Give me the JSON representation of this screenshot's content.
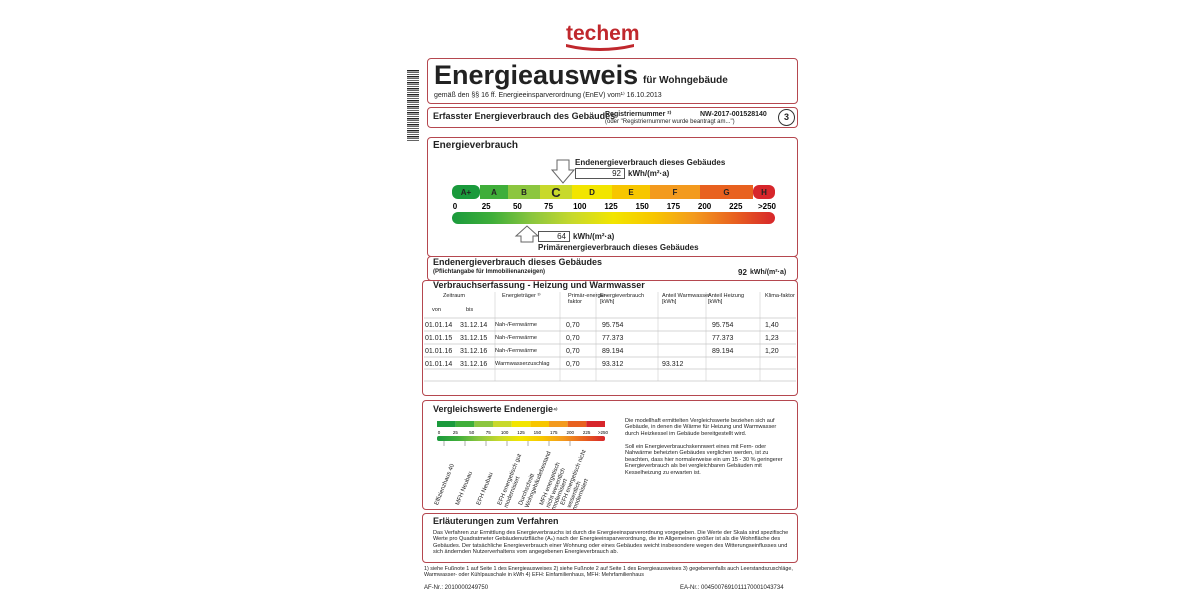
{
  "logo": "techem",
  "header": {
    "title": "Energieausweis",
    "subtitle": "für Wohngebäude",
    "regulation": "gemäß den §§ 16 ff. Energieeinsparverordnung (EnEV) vom¹⁾ 16.10.2013"
  },
  "section": {
    "title": "Erfasster Energieverbrauch des Gebäudes",
    "registration_label": "Registriernummer ²⁾",
    "registration_number": "NW-2017-001528140",
    "registration_note": "(oder \"Registriernummer wurde beantragt am...\")",
    "page": "3"
  },
  "energy": {
    "title": "Energieverbrauch",
    "final_label": "Endenergieverbrauch dieses Gebäudes",
    "final_value": "92",
    "unit": "kWh/(m²·a)",
    "classes": [
      "A+",
      "A",
      "B",
      "C",
      "D",
      "E",
      "F",
      "G",
      "H"
    ],
    "scale": [
      "0",
      "25",
      "50",
      "75",
      "100",
      "125",
      "150",
      "175",
      "200",
      "225",
      ">250"
    ],
    "primary_value": "64",
    "primary_label": "Primärenergieverbrauch dieses Gebäudes"
  },
  "mandatory": {
    "title": "Endenergieverbrauch dieses Gebäudes",
    "note": "(Pflichtangabe für Immobilienanzeigen)",
    "value": "92",
    "unit": "kWh/(m²·a)"
  },
  "table": {
    "title": "Verbrauchserfassung - Heizung und Warmwasser",
    "headers": [
      "Zeitraum",
      "Energieträger ³⁾",
      "Primär-energie-faktor",
      "Energieverbrauch [kWh]",
      "Anteil Warmwasser [kWh]",
      "Anteil Heizung [kWh]",
      "Klima-faktor"
    ],
    "subheaders": [
      "von",
      "bis"
    ],
    "rows": [
      [
        "01.01.14",
        "31.12.14",
        "Nah-/Fernwärme",
        "0,70",
        "95.754",
        null,
        "95.754",
        "1,40"
      ],
      [
        "01.01.15",
        "31.12.15",
        "Nah-/Fernwärme",
        "0,70",
        "77.373",
        null,
        "77.373",
        "1,23"
      ],
      [
        "01.01.16",
        "31.12.16",
        "Nah-/Fernwärme",
        "0,70",
        "89.194",
        null,
        "89.194",
        "1,20"
      ],
      [
        "01.01.14",
        "31.12.16",
        "Warmwasserzuschlag",
        "0,70",
        "93.312",
        "93.312",
        null,
        null
      ]
    ]
  },
  "comparison": {
    "title": "Vergleichswerte Endenergie",
    "title_note": "⁴⁾",
    "scale": [
      "0",
      "25",
      "50",
      "75",
      "100",
      "125",
      "150",
      "175",
      "200",
      "225",
      ">250"
    ],
    "labels": [
      "Effizienzhaus 40",
      "MFH Neubau",
      "EFH Neubau",
      "EFH energetisch gut modernisiert",
      "Durchschnitt Wohngebäudebestand",
      "MFH energetisch nicht wesentlich modernisiert",
      "EFH energetisch nicht wesentlich modernisiert"
    ],
    "text": [
      "Die modellhaft ermittelten Vergleichswerte beziehen sich auf Gebäude, in denen die Wärme für Heizung und Warmwasser durch Heizkessel im Gebäude bereitgestellt wird.",
      "Soll ein Energieverbrauchskennwert eines mit Fern- oder Nahwärme beheizten Gebäudes verglichen werden, ist zu beachten, dass hier normalerweise ein um 15 - 30 % geringerer Energieverbrauch als bei vergleichbaren Gebäuden mit Kesselheizung zu erwarten ist."
    ]
  },
  "explanation": {
    "title": "Erläuterungen zum Verfahren",
    "text": "Das Verfahren zur Ermittlung des Energieverbrauchs ist durch die Energieeinsparverordnung vorgegeben. Die Werte der Skala sind spezifische Werte pro Quadratmeter Gebäudenutzfläche (Aₙ) nach der Energieeinsparverordnung, die im Allgemeinen größer ist als die Wohnfläche des Gebäudes. Der tatsächliche Energieverbrauch einer Wohnung oder eines Gebäudes weicht insbesondere wegen des Witterungseinflusses und sich ändernden Nutzerverhaltens vom angegebenen Energieverbrauch ab."
  },
  "footer": {
    "footnotes": "1) siehe Fußnote 1 auf Seite 1 des Energieausweises   2) siehe Fußnote 2 auf Seite 1 des Energieausweises   3) gegebenenfalls auch Leerstandszuschläge, Warmwasser- oder Kühlpauschale in kWh   4) EFH: Einfamilienhaus, MFH: Mehrfamilienhaus",
    "af_nr": "AF-Nr.: 2010000249750",
    "ea_nr": "EA-Nr.: 0045007691011170001043734"
  }
}
